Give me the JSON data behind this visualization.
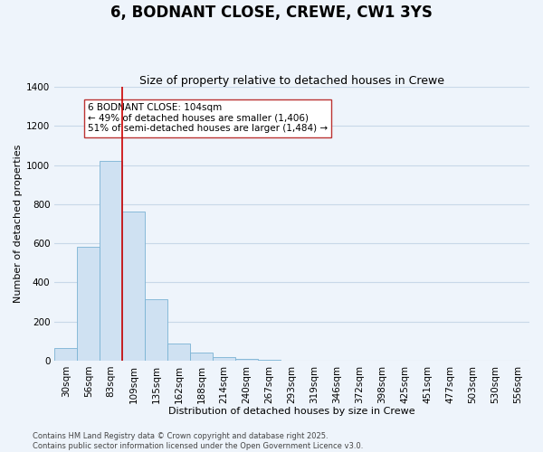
{
  "title": "6, BODNANT CLOSE, CREWE, CW1 3YS",
  "subtitle": "Size of property relative to detached houses in Crewe",
  "xlabel": "Distribution of detached houses by size in Crewe",
  "ylabel": "Number of detached properties",
  "bar_labels": [
    "30sqm",
    "56sqm",
    "83sqm",
    "109sqm",
    "135sqm",
    "162sqm",
    "188sqm",
    "214sqm",
    "240sqm",
    "267sqm",
    "293sqm",
    "319sqm",
    "346sqm",
    "372sqm",
    "398sqm",
    "425sqm",
    "451sqm",
    "477sqm",
    "503sqm",
    "530sqm",
    "556sqm"
  ],
  "bar_values": [
    65,
    580,
    1020,
    760,
    315,
    88,
    40,
    18,
    8,
    2,
    0,
    0,
    0,
    0,
    0,
    0,
    0,
    0,
    0,
    0,
    0
  ],
  "bar_color": "#cfe1f2",
  "bar_edge_color": "#7ab3d4",
  "ylim": [
    0,
    1400
  ],
  "yticks": [
    0,
    200,
    400,
    600,
    800,
    1000,
    1200,
    1400
  ],
  "vline_color": "#cc0000",
  "annotation_title": "6 BODNANT CLOSE: 104sqm",
  "annotation_line1": "← 49% of detached houses are smaller (1,406)",
  "annotation_line2": "51% of semi-detached houses are larger (1,484) →",
  "footer_line1": "Contains HM Land Registry data © Crown copyright and database right 2025.",
  "footer_line2": "Contains public sector information licensed under the Open Government Licence v3.0.",
  "background_color": "#eef4fb",
  "grid_color": "#c8d8e8",
  "title_fontsize": 12,
  "subtitle_fontsize": 9,
  "axis_label_fontsize": 8,
  "tick_fontsize": 7.5,
  "annotation_fontsize": 7.5
}
